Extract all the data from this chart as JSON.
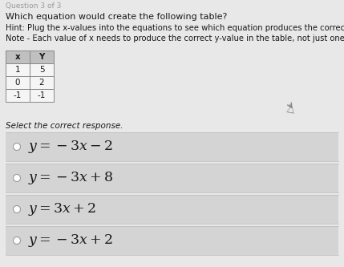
{
  "title_partial": "Question 3 of 3",
  "question": "Which equation would create the following table?",
  "hint": "Hint: Plug the x-values into the equations to see which equation produces the correct y-values.",
  "note": "Note - Each value of x needs to produce the correct y-value in the table, not just one or two of them.",
  "table_headers": [
    "x",
    "Y"
  ],
  "table_data": [
    [
      1,
      5
    ],
    [
      0,
      2
    ],
    [
      -1,
      -1
    ]
  ],
  "select_label": "Select the correct response.",
  "options_latex": [
    "$y = -3x - 2$",
    "$y = -3x + 8$",
    "$y = 3x + 2$",
    "$y = -3x + 2$"
  ],
  "bg_color": "#e8e8e8",
  "option_box_color": "#d4d4d4",
  "option_box_color2": "#cccccc",
  "text_color": "#1a1a1a",
  "header_bg": "#c0c0c0",
  "cell_bg": "#f5f5f5",
  "title_color": "#888888"
}
